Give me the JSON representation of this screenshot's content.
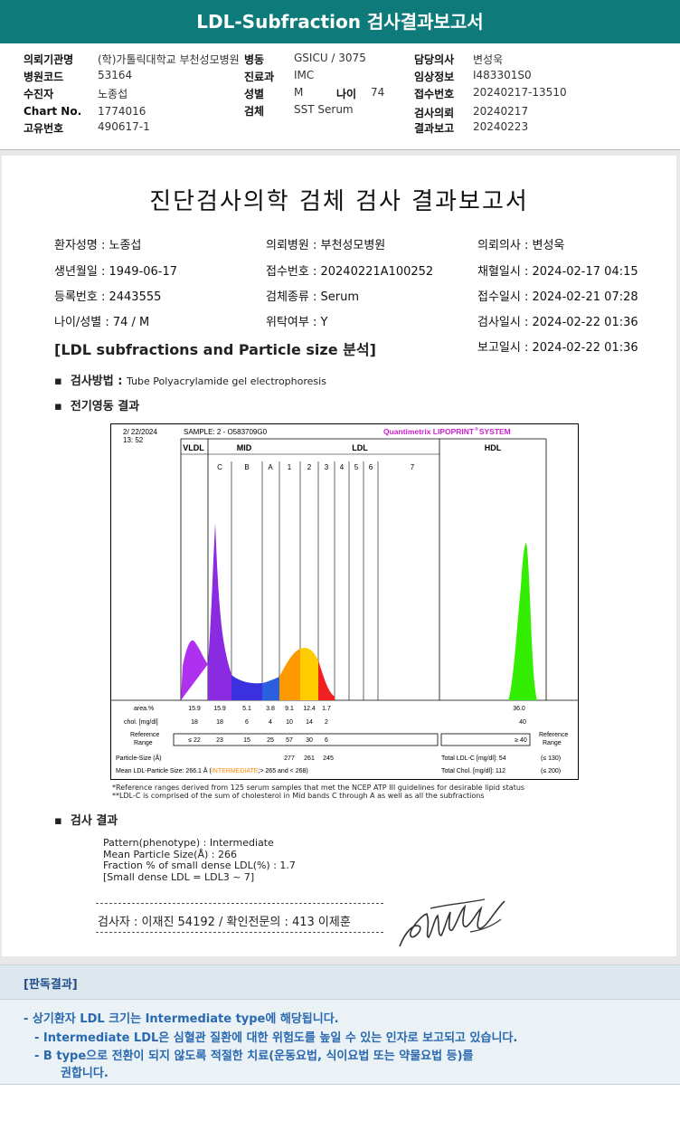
{
  "title": "LDL-Subfraction 검사결과보고서",
  "header": {
    "col1": [
      {
        "label": "의뢰기관명",
        "value": "(학)가톨릭대학교 부천성모병원"
      },
      {
        "label": "병원코드",
        "value": "53164"
      },
      {
        "label": "수진자",
        "value": "노종섭"
      },
      {
        "label": "Chart No.",
        "value": "1774016"
      },
      {
        "label": "고유번호",
        "value": "490617-1"
      }
    ],
    "col2": [
      {
        "label": "병동",
        "value": "GSICU / 3075"
      },
      {
        "label": "진료과",
        "value": "IMC"
      },
      {
        "label": "성별",
        "value": "M"
      },
      {
        "label": "검체",
        "value": "SST Serum"
      }
    ],
    "age": {
      "label": "나이",
      "value": "74"
    },
    "col3": [
      {
        "label": "담당의사",
        "value": "변성욱"
      },
      {
        "label": "임상정보",
        "value": "I483301S0"
      },
      {
        "label": "접수번호",
        "value": "20240217-13510"
      },
      {
        "label": "검사의뢰",
        "value": "20240217"
      },
      {
        "label": "결과보고",
        "value": "20240223"
      }
    ]
  },
  "report": {
    "title": "진단검사의학 검체 검사 결과보고서",
    "info": [
      [
        "환자성명 : 노종섭",
        "의뢰병원 : 부천성모병원",
        "의뢰의사 : 변성욱"
      ],
      [
        "생년월일 : 1949-06-17",
        "접수번호 : 20240221A100252",
        "채혈일시 : 2024-02-17 04:15"
      ],
      [
        "등록번호 : 2443555",
        "검체종류 : Serum",
        "접수일시 : 2024-02-21 07:28"
      ],
      [
        "나이/성별 : 74 / M",
        "위탁여부 : Y",
        "검사일시 : 2024-02-22 01:36"
      ]
    ],
    "subheading": "[LDL subfractions and Particle size 분석]",
    "report_time": "보고일시 : 2024-02-22 01:36",
    "method_label": "검사방법 : ",
    "method_value": "Tube Polyacrylamide gel electrophoresis",
    "electro_label": "전기영동 결과",
    "result_label": "검사 결과",
    "result_lines": [
      "Pattern(phenotype) : Intermediate",
      "Mean Particle Size(Å) : 266",
      "Fraction % of small dense LDL(%) : 1.7",
      "[Small dense LDL = LDL3 ~ 7]"
    ],
    "signature_line": "검사자 : 이재진 54192  /  확인전문의 : 413 이제훈",
    "notes": [
      "*Reference ranges derived from 125 serum samples that met the NCEP ATP III guidelines for desirable lipid status",
      "**LDL-C is comprised of the sum of cholesterol in Mid bands C through A as well as all the subfractions"
    ]
  },
  "chart_data": {
    "type": "area",
    "date": "2/ 22/2024",
    "time": "13: 52",
    "sample": "SAMPLE:   2 - O583709G0",
    "brand": "Quantimetrix LIPOPRINT",
    "brand_suffix": "SYSTEM",
    "regions": [
      "VLDL",
      "MID",
      "LDL",
      "HDL"
    ],
    "bands": [
      "C",
      "B",
      "A",
      "1",
      "2",
      "3",
      "4",
      "5",
      "6",
      "7"
    ],
    "area_label": "area.%",
    "area_values": [
      "15.9",
      "15.9",
      "5.1",
      "3.8",
      "9.1",
      "12.4",
      "1.7"
    ],
    "hdl_area": "36.0",
    "chol_label": "chol. [mg/dl]",
    "chol_values": [
      "18",
      "18",
      "6",
      "4",
      "10",
      "14",
      "2"
    ],
    "hdl_chol": "40",
    "ref_label": "Reference Range",
    "ref_values": [
      "≤ 22",
      "23",
      "15",
      "25",
      "57",
      "30",
      "6"
    ],
    "hdl_ref": "≥ 40",
    "particle_label": "Particle-Size (Å)",
    "particle_values": [
      "277",
      "261",
      "245"
    ],
    "mean_label": "Mean LDL-Particle Size:  266.1 Å (",
    "mean_highlight": "INTERMEDIATE",
    "mean_tail": ";> 265 and < 268)",
    "total_ldl": "Total LDL-C [mg/dl]:  54",
    "total_ldl_ref": "(≤ 130)",
    "total_chol": "Total Chol. [mg/dl]:  112",
    "total_chol_ref": "(≤ 200)",
    "colors": {
      "vldl": "#b030f0",
      "mid_c": "#8a2be2",
      "mid_b": "#3a30e0",
      "mid_a": "#2a60e0",
      "ldl1": "#ff9900",
      "ldl2": "#ffcc00",
      "ldl3": "#ee2020",
      "hdl": "#33ee00",
      "brand": "#cc22cc"
    }
  },
  "pandok": {
    "title": "[판독결과]",
    "lines": [
      "-  상기환자 LDL 크기는 Intermediate type에 해당됩니다.",
      "-  Intermediate LDL은 심혈관 질환에 대한 위험도를 높일 수 있는 인자로 보고되고 있습니다.",
      "-  B type으로 전환이 되지 않도록 적절한 치료(운동요법, 식이요법 또는 약물요법 등)를",
      "권합니다."
    ]
  }
}
